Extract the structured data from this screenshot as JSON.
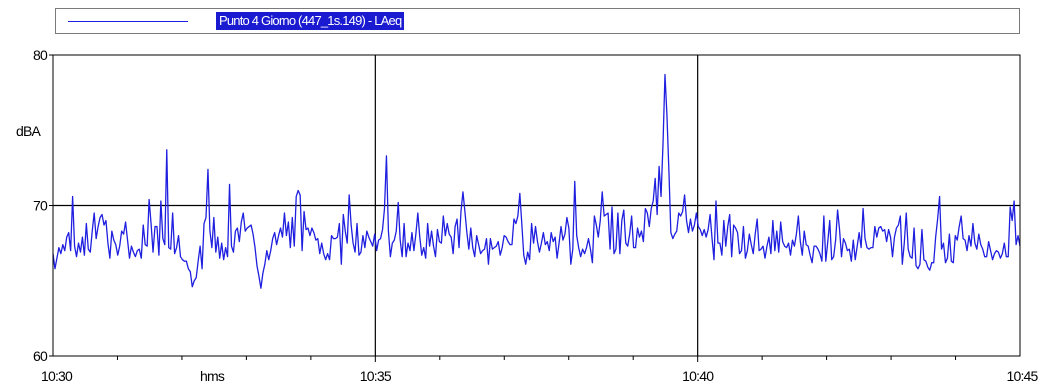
{
  "legend": {
    "series_label": "Punto 4 Giorno (447_1s.149) - LAeq",
    "line_color": "#1f1fe0",
    "label_bg_color": "#1a1ad0"
  },
  "chart_data": {
    "type": "line",
    "title": "",
    "xlabel": "hms",
    "ylabel": "dBA",
    "x_start": "10:30",
    "x_end": "10:45",
    "x_ticks": [
      "10:30",
      "10:35",
      "10:40",
      "10:45"
    ],
    "y_ticks": [
      "60",
      "70",
      "80"
    ],
    "ylim": [
      60,
      80
    ],
    "grid": true,
    "legend_position": "top",
    "series": [
      {
        "name": "Punto 4 Giorno (447_1s.149) - LAeq",
        "color": "#1f1fe0",
        "sample_interval_s": 10,
        "values": [
          66.8,
          65.8,
          66.5,
          67.2,
          66.8,
          67.4,
          67.0,
          67.9,
          68.2,
          67.0,
          70.6,
          67.3,
          66.6,
          67.5,
          66.9,
          67.9,
          66.7,
          68.8,
          67.1,
          66.9,
          68.3,
          69.5,
          67.8,
          68.6,
          69.2,
          69.4,
          68.7,
          69.0,
          67.5,
          66.5,
          68.3,
          67.7,
          67.4,
          66.7,
          67.3,
          68.3,
          68.1,
          68.9,
          67.7,
          66.5,
          67.3,
          66.9,
          66.6,
          67.0,
          67.1,
          66.5,
          68.7,
          67.4,
          67.3,
          70.4,
          68.8,
          66.9,
          68.6,
          68.6,
          66.7,
          70.3,
          67.8,
          67.4,
          73.7,
          67.2,
          67.1,
          69.5,
          66.8,
          67.2,
          68.0,
          66.6,
          66.4,
          66.3,
          66.3,
          65.8,
          65.6,
          64.6,
          65.0,
          65.2,
          66.3,
          67.3,
          65.8,
          68.8,
          69.2,
          72.4,
          68.3,
          67.2,
          69.2,
          66.9,
          67.9,
          66.5,
          67.5,
          66.4,
          67.2,
          66.6,
          71.4,
          67.3,
          66.9,
          68.3,
          68.5,
          67.6,
          68.9,
          69.5,
          68.3,
          68.5,
          68.6,
          68.7,
          68.1,
          67.2,
          66.0,
          65.3,
          64.5,
          65.5,
          66.1,
          67.0,
          66.4,
          67.0,
          67.8,
          68.2,
          67.4,
          68.0,
          68.5,
          67.9,
          69.5,
          68.0,
          68.9,
          67.2,
          69.2,
          67.3,
          70.6,
          71.0,
          70.7,
          67.0,
          69.6,
          68.4,
          68.5,
          68.0,
          68.5,
          68.2,
          67.7,
          67.8,
          66.8,
          67.5,
          66.8,
          66.4,
          66.8,
          66.4,
          68.0,
          67.8,
          67.8,
          67.9,
          68.8,
          66.1,
          69.4,
          68.3,
          67.5,
          70.7,
          68.7,
          67.5,
          66.9,
          68.8,
          66.7,
          66.9,
          68.0,
          67.2,
          68.3,
          67.9,
          67.6,
          67.3,
          68.1,
          67.0,
          67.7,
          67.8,
          68.4,
          69.8,
          73.3,
          68.3,
          66.6,
          67.5,
          67.7,
          68.3,
          70.2,
          67.7,
          66.6,
          68.8,
          66.6,
          67.5,
          67.0,
          68.2,
          67.0,
          68.1,
          69.5,
          67.9,
          66.7,
          67.2,
          66.5,
          68.8,
          67.3,
          68.3,
          67.3,
          66.6,
          68.4,
          67.6,
          67.5,
          69.3,
          68.0,
          68.8,
          68.1,
          67.9,
          66.8,
          68.6,
          69.1,
          67.2,
          69.6,
          70.9,
          69.6,
          68.2,
          67.1,
          68.5,
          67.2,
          66.6,
          68.0,
          67.4,
          66.8,
          67.0,
          67.1,
          67.8,
          66.1,
          67.8,
          67.1,
          67.2,
          67.3,
          67.6,
          66.7,
          67.2,
          68.0,
          67.9,
          67.6,
          67.4,
          67.4,
          69.1,
          68.8,
          69.3,
          70.8,
          68.8,
          66.7,
          66.1,
          66.9,
          66.4,
          68.8,
          67.5,
          68.6,
          67.6,
          66.9,
          67.5,
          68.2,
          67.4,
          67.6,
          67.0,
          68.2,
          67.6,
          67.9,
          66.5,
          67.5,
          68.6,
          67.7,
          68.1,
          69.2,
          68.5,
          66.1,
          67.1,
          71.6,
          68.0,
          67.2,
          66.6,
          67.1,
          66.8,
          67.2,
          67.8,
          67.1,
          66.2,
          69.3,
          68.7,
          67.9,
          69.0,
          70.9,
          69.3,
          69.4,
          69.5,
          67.1,
          69.9,
          66.8,
          67.1,
          69.5,
          66.8,
          69.0,
          69.7,
          67.5,
          67.3,
          68.1,
          69.3,
          67.2,
          67.2,
          68.5,
          67.9,
          68.3,
          67.6,
          69.8,
          69.5,
          68.6,
          69.8,
          70.3,
          71.8,
          69.4,
          72.6,
          70.6,
          74.1,
          78.7,
          76.0,
          72.3,
          68.2,
          67.8,
          68.1,
          68.3,
          69.5,
          69.3,
          69.6,
          70.7,
          69.0,
          68.2,
          69.1,
          68.3,
          68.7,
          69.5,
          68.6,
          68.4,
          68.0,
          68.4,
          67.9,
          68.4,
          69.4,
          67.8,
          66.4,
          70.3,
          67.5,
          67.5,
          66.7,
          69.0,
          67.3,
          68.6,
          69.4,
          66.6,
          68.7,
          68.5,
          68.2,
          66.8,
          67.0,
          68.6,
          66.5,
          67.0,
          68.1,
          67.4,
          66.8,
          68.1,
          69.1,
          67.0,
          67.1,
          67.3,
          66.5,
          67.3,
          67.9,
          66.8,
          69.0,
          67.0,
          68.3,
          66.9,
          68.9,
          67.6,
          67.3,
          67.2,
          67.5,
          66.7,
          67.7,
          67.3,
          68.1,
          69.3,
          67.6,
          66.7,
          68.3,
          67.4,
          67.3,
          66.7,
          66.2,
          67.3,
          67.3,
          67.1,
          66.8,
          66.3,
          69.3,
          66.3,
          67.6,
          69.0,
          66.4,
          66.6,
          67.7,
          69.7,
          68.4,
          66.6,
          67.8,
          67.5,
          67.0,
          67.1,
          66.3,
          67.7,
          66.4,
          67.3,
          68.2,
          67.2,
          69.8,
          67.8,
          67.2,
          67.1,
          67.2,
          67.2,
          68.6,
          67.9,
          68.5,
          68.6,
          68.3,
          68.4,
          67.6,
          68.4,
          67.9,
          66.6,
          67.9,
          68.5,
          68.7,
          69.3,
          66.1,
          67.5,
          69.5,
          67.1,
          66.6,
          66.5,
          68.5,
          66.0,
          65.8,
          66.1,
          68.4,
          66.4,
          66.3,
          65.9,
          65.7,
          66.2,
          66.2,
          67.9,
          69.1,
          70.6,
          67.1,
          67.5,
          66.2,
          66.5,
          68.1,
          66.3,
          66.2,
          68.0,
          67.7,
          68.6,
          69.3,
          67.8,
          67.7,
          67.0,
          68.0,
          67.3,
          68.8,
          67.5,
          67.1,
          68.1,
          67.4,
          67.1,
          66.6,
          66.6,
          67.6,
          67.0,
          66.4,
          66.8,
          67.0,
          66.9,
          66.5,
          66.8,
          67.5,
          66.6,
          66.6,
          69.9,
          69.0,
          70.3,
          67.4,
          68.0,
          67.3
        ]
      }
    ]
  }
}
